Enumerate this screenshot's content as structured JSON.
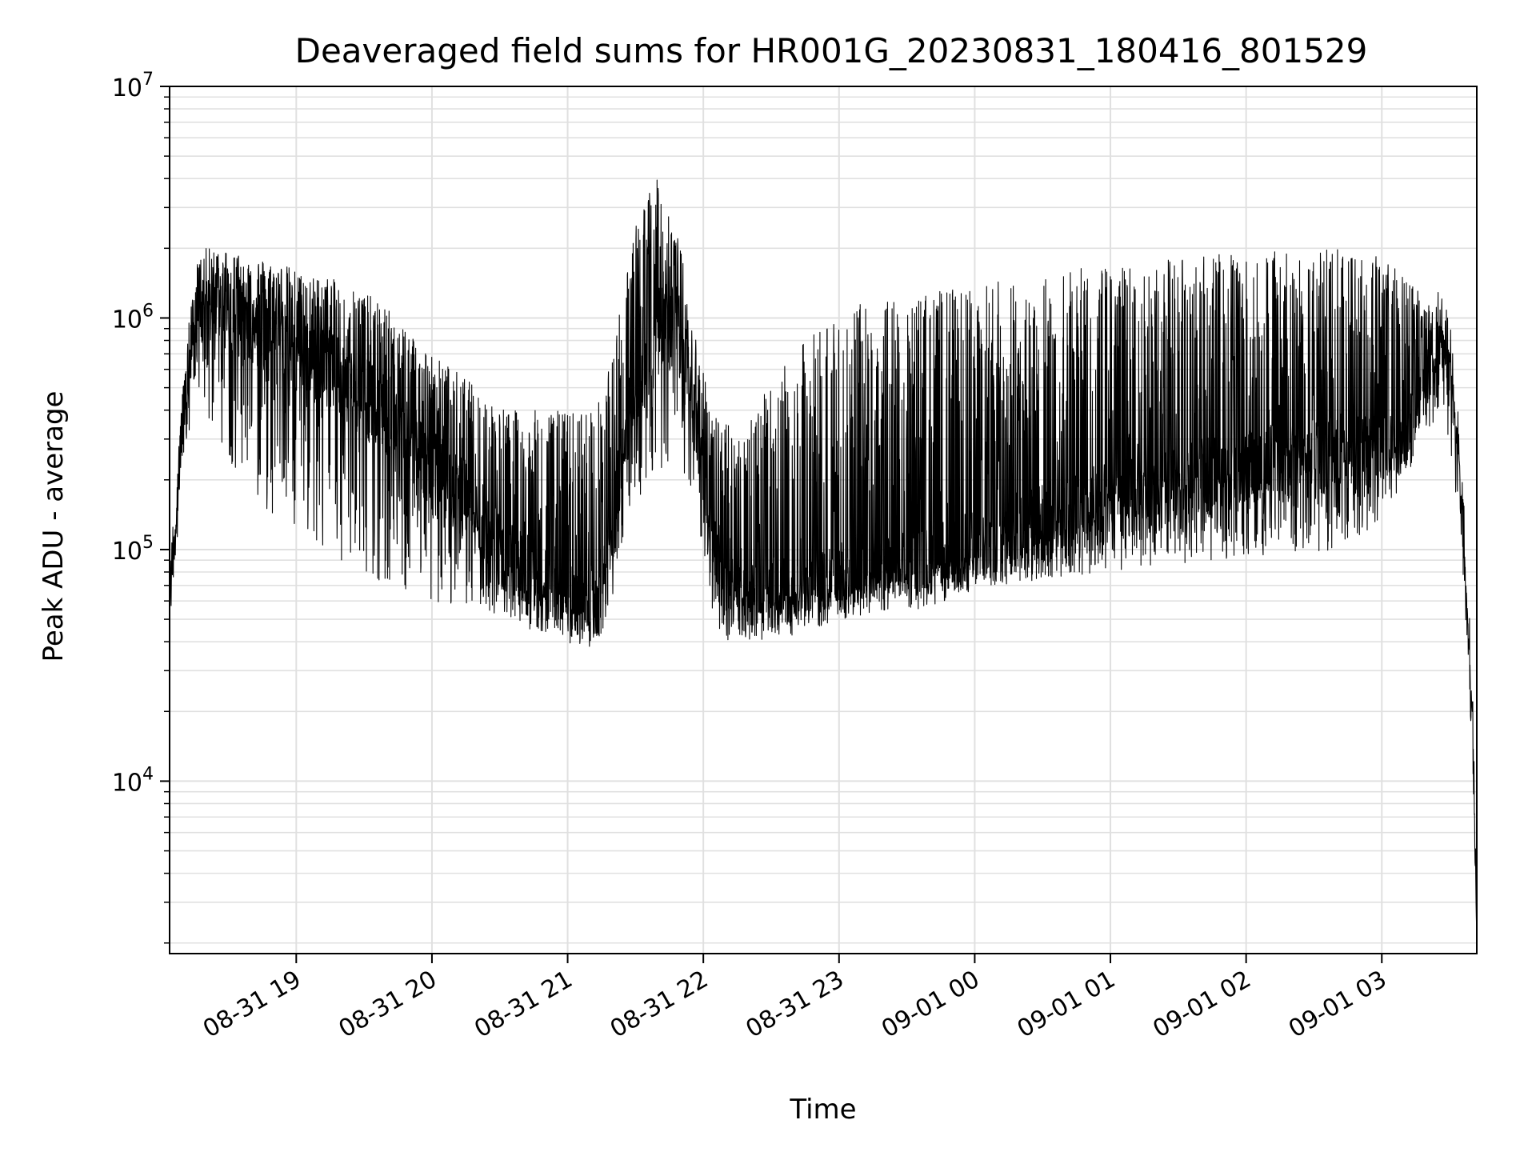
{
  "chart_data": {
    "type": "line",
    "title": "Deaveraged field sums for HR001G_20230831_180416_801529",
    "xlabel": "Time",
    "ylabel": "Peak ADU - average",
    "yscale": "log",
    "ylim": [
      1800,
      10000000
    ],
    "xlim": [
      "2023-08-31 18:04",
      "2023-09-01 03:42"
    ],
    "grid": true,
    "line_color": "#000000",
    "grid_color": "#e0e0e0",
    "x_ticks": [
      {
        "label": "08-31 19",
        "time": "2023-08-31 19:00"
      },
      {
        "label": "08-31 20",
        "time": "2023-08-31 20:00"
      },
      {
        "label": "08-31 21",
        "time": "2023-08-31 21:00"
      },
      {
        "label": "08-31 22",
        "time": "2023-08-31 22:00"
      },
      {
        "label": "08-31 23",
        "time": "2023-08-31 23:00"
      },
      {
        "label": "09-01 00",
        "time": "2023-09-01 00:00"
      },
      {
        "label": "09-01 01",
        "time": "2023-09-01 01:00"
      },
      {
        "label": "09-01 02",
        "time": "2023-09-01 02:00"
      },
      {
        "label": "09-01 03",
        "time": "2023-09-01 03:00"
      }
    ],
    "y_ticks": [
      {
        "base": "10",
        "exp": "4",
        "value": 10000
      },
      {
        "base": "10",
        "exp": "5",
        "value": 100000
      },
      {
        "base": "10",
        "exp": "6",
        "value": 1000000
      },
      {
        "base": "10",
        "exp": "7",
        "value": 10000000
      }
    ],
    "series": [
      {
        "x": [
          "2023-08-31 18:04",
          "2023-08-31 18:08",
          "2023-08-31 18:12",
          "2023-08-31 18:16",
          "2023-08-31 18:20",
          "2023-08-31 18:25",
          "2023-08-31 18:30",
          "2023-08-31 18:35",
          "2023-08-31 18:40",
          "2023-08-31 18:45",
          "2023-08-31 18:50",
          "2023-08-31 18:55",
          "2023-08-31 19:00",
          "2023-08-31 19:05",
          "2023-08-31 19:10",
          "2023-08-31 19:15",
          "2023-08-31 19:20",
          "2023-08-31 19:25",
          "2023-08-31 19:30",
          "2023-08-31 19:35",
          "2023-08-31 19:40",
          "2023-08-31 19:45",
          "2023-08-31 19:50",
          "2023-08-31 19:55",
          "2023-08-31 20:00",
          "2023-08-31 20:05",
          "2023-08-31 20:10",
          "2023-08-31 20:15",
          "2023-08-31 20:20",
          "2023-08-31 20:25",
          "2023-08-31 20:30",
          "2023-08-31 20:35",
          "2023-08-31 20:40",
          "2023-08-31 20:45",
          "2023-08-31 20:50",
          "2023-08-31 20:55",
          "2023-08-31 21:00",
          "2023-08-31 21:05",
          "2023-08-31 21:10",
          "2023-08-31 21:15",
          "2023-08-31 21:20",
          "2023-08-31 21:25",
          "2023-08-31 21:30",
          "2023-08-31 21:35",
          "2023-08-31 21:40",
          "2023-08-31 21:45",
          "2023-08-31 21:50",
          "2023-08-31 21:55",
          "2023-08-31 22:00",
          "2023-08-31 22:05",
          "2023-08-31 22:10",
          "2023-08-31 22:15",
          "2023-08-31 22:20",
          "2023-08-31 22:25",
          "2023-08-31 22:30",
          "2023-08-31 22:35",
          "2023-08-31 22:40",
          "2023-08-31 22:45",
          "2023-08-31 22:50",
          "2023-08-31 22:55",
          "2023-08-31 23:00",
          "2023-08-31 23:10",
          "2023-08-31 23:20",
          "2023-08-31 23:30",
          "2023-08-31 23:40",
          "2023-08-31 23:50",
          "2023-09-01 00:00",
          "2023-09-01 00:10",
          "2023-09-01 00:20",
          "2023-09-01 00:30",
          "2023-09-01 00:40",
          "2023-09-01 00:50",
          "2023-09-01 01:00",
          "2023-09-01 01:10",
          "2023-09-01 01:20",
          "2023-09-01 01:30",
          "2023-09-01 01:40",
          "2023-09-01 01:50",
          "2023-09-01 02:00",
          "2023-09-01 02:10",
          "2023-09-01 02:20",
          "2023-09-01 02:30",
          "2023-09-01 02:40",
          "2023-09-01 02:50",
          "2023-09-01 03:00",
          "2023-09-01 03:10",
          "2023-09-01 03:20",
          "2023-09-01 03:25",
          "2023-09-01 03:30",
          "2023-09-01 03:35",
          "2023-09-01 03:40",
          "2023-09-01 03:42"
        ],
        "base": [
          60000,
          200000,
          500000,
          1000000,
          1000000,
          1200000,
          1100000,
          1000000,
          950000,
          900000,
          850000,
          800000,
          750000,
          700000,
          650000,
          600000,
          550000,
          500000,
          450000,
          420000,
          380000,
          330000,
          280000,
          250000,
          230000,
          200000,
          180000,
          160000,
          140000,
          120000,
          100000,
          90000,
          80000,
          75000,
          70000,
          65000,
          60000,
          55000,
          55000,
          60000,
          120000,
          300000,
          500000,
          700000,
          900000,
          1000000,
          800000,
          400000,
          250000,
          100000,
          70000,
          65000,
          62000,
          60000,
          60000,
          62000,
          64000,
          66000,
          68000,
          70000,
          72000,
          75000,
          78000,
          80000,
          85000,
          90000,
          100000,
          110000,
          120000,
          130000,
          140000,
          150000,
          160000,
          170000,
          180000,
          190000,
          200000,
          210000,
          220000,
          230000,
          240000,
          250000,
          260000,
          270000,
          280000,
          300000,
          600000,
          900000,
          700000,
          200000,
          20000,
          2000
        ],
        "high": [
          60000,
          300000,
          900000,
          1700000,
          2000000,
          2000000,
          2000000,
          1900000,
          1800000,
          1800000,
          1700000,
          1700000,
          1600000,
          1500000,
          1500000,
          1500000,
          1400000,
          1400000,
          1300000,
          1200000,
          1100000,
          1000000,
          900000,
          800000,
          700000,
          650000,
          600000,
          550000,
          500000,
          450000,
          420000,
          400000,
          400000,
          400000,
          400000,
          400000,
          400000,
          400000,
          420000,
          450000,
          700000,
          1500000,
          2500000,
          3500000,
          4000000,
          3000000,
          2000000,
          1000000,
          600000,
          400000,
          350000,
          350000,
          400000,
          450000,
          500000,
          600000,
          700000,
          800000,
          900000,
          1000000,
          1100000,
          1150000,
          1200000,
          1250000,
          1300000,
          1350000,
          1400000,
          1450000,
          1500000,
          1550000,
          1600000,
          1650000,
          1700000,
          1700000,
          1750000,
          1800000,
          1850000,
          1900000,
          1950000,
          1950000,
          2000000,
          2000000,
          2000000,
          1950000,
          1900000,
          1500000,
          1200000,
          1000000,
          700000,
          200000,
          20000,
          2000
        ],
        "low": [
          60000,
          150000,
          300000,
          500000,
          400000,
          300000,
          250000,
          200000,
          180000,
          150000,
          130000,
          120000,
          110000,
          105000,
          100000,
          95000,
          90000,
          85000,
          80000,
          75000,
          70000,
          68000,
          65000,
          62000,
          60000,
          58000,
          56000,
          54000,
          52000,
          50000,
          48000,
          47000,
          46000,
          45000,
          44000,
          43000,
          42000,
          41000,
          40000,
          42000,
          60000,
          120000,
          150000,
          180000,
          200000,
          220000,
          200000,
          150000,
          100000,
          45000,
          40000,
          40000,
          40000,
          42000,
          44000,
          46000,
          48000,
          50000,
          52000,
          54000,
          56000,
          58000,
          60000,
          62000,
          64000,
          66000,
          68000,
          70000,
          72000,
          74000,
          76000,
          78000,
          80000,
          82000,
          84000,
          86000,
          88000,
          90000,
          92000,
          94000,
          96000,
          98000,
          100000,
          110000,
          130000,
          200000,
          300000,
          400000,
          300000,
          100000,
          15000,
          2000
        ]
      }
    ]
  }
}
